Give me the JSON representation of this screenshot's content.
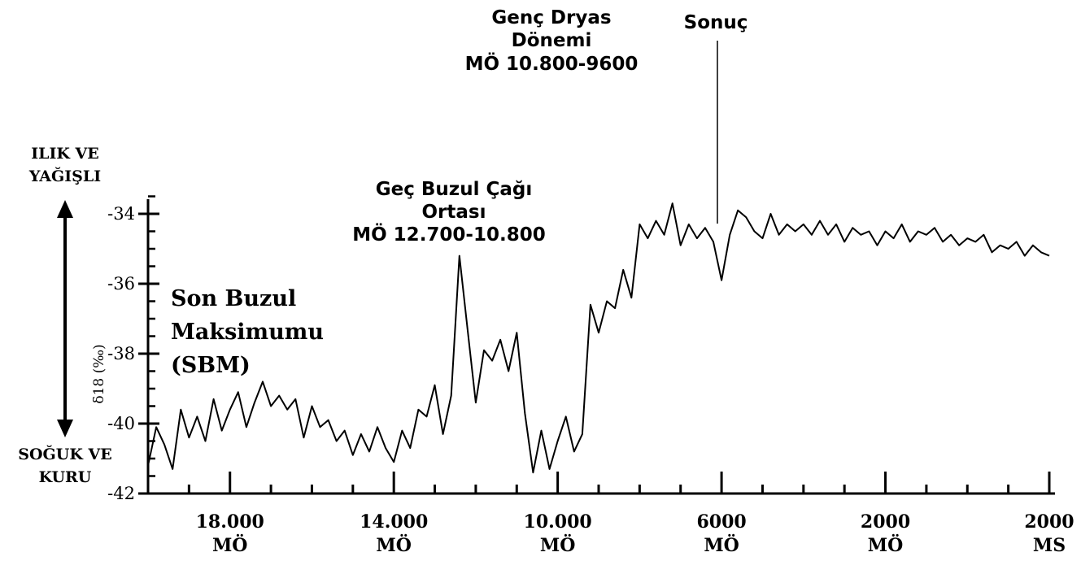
{
  "chart_data": {
    "type": "line",
    "title": "",
    "ylabel": "δ18 (‰)",
    "xlabel": "",
    "ylim": [
      -42,
      -33.5
    ],
    "xlim": [
      -20000,
      2000
    ],
    "y_ticks": [
      -34,
      -36,
      -38,
      -40,
      -42
    ],
    "y_tick_labels": [
      "-34",
      "-36",
      "-38",
      "-40",
      "-42"
    ],
    "x_tick_labels": [
      {
        "value": -18000,
        "line1": "18.000",
        "line2": "MÖ"
      },
      {
        "value": -14000,
        "line1": "14.000",
        "line2": "MÖ"
      },
      {
        "value": -10000,
        "line1": "10.000",
        "line2": "MÖ"
      },
      {
        "value": -6000,
        "line1": "6000",
        "line2": "MÖ"
      },
      {
        "value": -2000,
        "line1": "2000",
        "line2": "MÖ"
      },
      {
        "value": 2000,
        "line1": "2000",
        "line2": "MS"
      }
    ],
    "grid": false,
    "series": [
      {
        "x": [
          -20000,
          -19800,
          -19600,
          -19400,
          -19200,
          -19000,
          -18800,
          -18600,
          -18400,
          -18200,
          -18000,
          -17800,
          -17600,
          -17400,
          -17200,
          -17000,
          -16800,
          -16600,
          -16400,
          -16200,
          -16000,
          -15800,
          -15600,
          -15400,
          -15200,
          -15000,
          -14800,
          -14600,
          -14400,
          -14200,
          -14000,
          -13800,
          -13600,
          -13400,
          -13200,
          -13000,
          -12800,
          -12600,
          -12400,
          -12200,
          -12000,
          -11800,
          -11600,
          -11400,
          -11200,
          -11000,
          -10800,
          -10600,
          -10400,
          -10200,
          -10000,
          -9800,
          -9600,
          -9400,
          -9200,
          -9000,
          -8800,
          -8600,
          -8400,
          -8200,
          -8000,
          -7800,
          -7600,
          -7400,
          -7200,
          -7000,
          -6800,
          -6600,
          -6400,
          -6200,
          -6000,
          -5800,
          -5600,
          -5400,
          -5200,
          -5000,
          -4800,
          -4600,
          -4400,
          -4200,
          -4000,
          -3800,
          -3600,
          -3400,
          -3200,
          -3000,
          -2800,
          -2600,
          -2400,
          -2200,
          -2000,
          -1800,
          -1600,
          -1400,
          -1200,
          -1000,
          -800,
          -600,
          -400,
          -200,
          0,
          200,
          400,
          600,
          800,
          1000,
          1200,
          1400,
          1600,
          1800,
          2000
        ],
        "values": [
          -41.2,
          -40.1,
          -40.6,
          -41.3,
          -39.6,
          -40.4,
          -39.8,
          -40.5,
          -39.3,
          -40.2,
          -39.6,
          -39.1,
          -40.1,
          -39.4,
          -38.8,
          -39.5,
          -39.2,
          -39.6,
          -39.3,
          -40.4,
          -39.5,
          -40.1,
          -39.9,
          -40.5,
          -40.2,
          -40.9,
          -40.3,
          -40.8,
          -40.1,
          -40.7,
          -41.1,
          -40.2,
          -40.7,
          -39.6,
          -39.8,
          -38.9,
          -40.3,
          -39.2,
          -35.2,
          -37.3,
          -39.4,
          -37.9,
          -38.2,
          -37.6,
          -38.5,
          -37.4,
          -39.7,
          -41.4,
          -40.2,
          -41.3,
          -40.5,
          -39.8,
          -40.8,
          -40.3,
          -36.6,
          -37.4,
          -36.5,
          -36.7,
          -35.6,
          -36.4,
          -34.3,
          -34.7,
          -34.2,
          -34.6,
          -33.7,
          -34.9,
          -34.3,
          -34.7,
          -34.4,
          -34.8,
          -35.9,
          -34.6,
          -33.9,
          -34.1,
          -34.5,
          -34.7,
          -34.0,
          -34.6,
          -34.3,
          -34.5,
          -34.3,
          -34.6,
          -34.2,
          -34.6,
          -34.3,
          -34.8,
          -34.4,
          -34.6,
          -34.5,
          -34.9,
          -34.5,
          -34.7,
          -34.3,
          -34.8,
          -34.5,
          -34.6,
          -34.4,
          -34.8,
          -34.6,
          -34.9,
          -34.7,
          -34.8,
          -34.6,
          -35.1,
          -34.9,
          -35.0,
          -34.8,
          -35.2,
          -34.9,
          -35.1,
          -35.2
        ]
      }
    ],
    "annotations": {
      "warm_line1": "ILIK VE",
      "warm_line2": "YAĞIŞLI",
      "cold_line1": "SOĞUK VE",
      "cold_line2": "KURU",
      "lgm_line1": "Son Buzul",
      "lgm_line2": "Maksimumu",
      "lgm_line3": "(SBM)",
      "late_glacial_line1": "Geç Buzul Çağı",
      "late_glacial_line2": "Ortası",
      "late_glacial_line3": "MÖ 12.700-10.800",
      "younger_dryas_line1": "Genç Dryas",
      "younger_dryas_line2": "Dönemi",
      "younger_dryas_line3": "MÖ 10.800-9600",
      "end_label": "Sonuç"
    }
  }
}
